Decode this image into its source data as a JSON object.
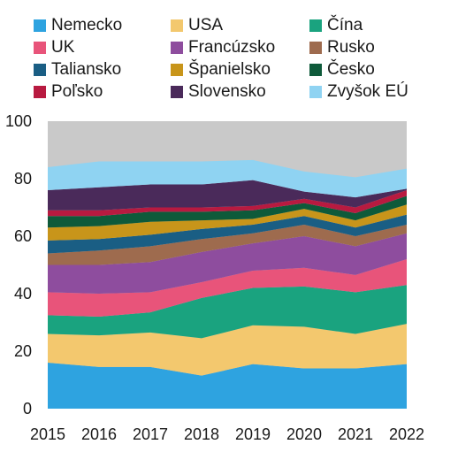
{
  "chart_data": {
    "type": "area",
    "stacked": true,
    "title": "",
    "xlabel": "",
    "ylabel": "",
    "ylim": [
      0,
      100
    ],
    "yticks": [
      0,
      20,
      40,
      60,
      80,
      100
    ],
    "grid": false,
    "legend_position": "top",
    "categories": [
      "2015",
      "2016",
      "2017",
      "2018",
      "2019",
      "2020",
      "2021",
      "2022"
    ],
    "series": [
      {
        "name": "Nemecko",
        "color": "#2ea3e0",
        "values": [
          16,
          14.5,
          14.5,
          11.5,
          15.5,
          14,
          14,
          15.5
        ]
      },
      {
        "name": "USA",
        "color": "#f3c86e",
        "values": [
          10,
          11,
          12,
          13,
          13.5,
          14.5,
          12,
          14
        ]
      },
      {
        "name": "Čína",
        "color": "#1aa37f",
        "values": [
          6.5,
          6.5,
          7,
          14,
          13,
          14,
          14.5,
          13.5
        ]
      },
      {
        "name": "UK",
        "color": "#e8547a",
        "values": [
          8,
          8,
          7,
          5.5,
          6,
          6.5,
          6,
          9
        ]
      },
      {
        "name": "Francúzsko",
        "color": "#8e4d9e",
        "values": [
          9.5,
          10,
          10.5,
          10.5,
          9.5,
          11,
          10,
          9
        ]
      },
      {
        "name": "Rusko",
        "color": "#9e6b4e",
        "values": [
          4,
          5,
          5.5,
          4.5,
          3.5,
          4,
          3.5,
          3
        ]
      },
      {
        "name": "Taliansko",
        "color": "#1a5e84",
        "values": [
          4.5,
          4,
          4,
          3.5,
          3,
          3,
          3,
          3.5
        ]
      },
      {
        "name": "Španielsko",
        "color": "#c8951a",
        "values": [
          4.5,
          4.5,
          4.5,
          3,
          2,
          2.5,
          2.5,
          3.5
        ]
      },
      {
        "name": "Česko",
        "color": "#0e5a3a",
        "values": [
          4,
          3.5,
          3.5,
          3,
          3,
          2,
          2.5,
          3
        ]
      },
      {
        "name": "Poľsko",
        "color": "#b81a40",
        "values": [
          2,
          2,
          1.5,
          1.5,
          1.5,
          1.5,
          2,
          2
        ]
      },
      {
        "name": "Slovensko",
        "color": "#4a2a5a",
        "values": [
          7,
          8,
          8,
          8,
          9,
          2.5,
          3.5,
          0.5
        ]
      },
      {
        "name": "Zvyšok EÚ",
        "color": "#8fd3f2",
        "values": [
          8,
          9,
          8,
          8,
          7,
          7,
          7,
          7
        ]
      }
    ],
    "remainder_color": "#c9c9c9"
  }
}
